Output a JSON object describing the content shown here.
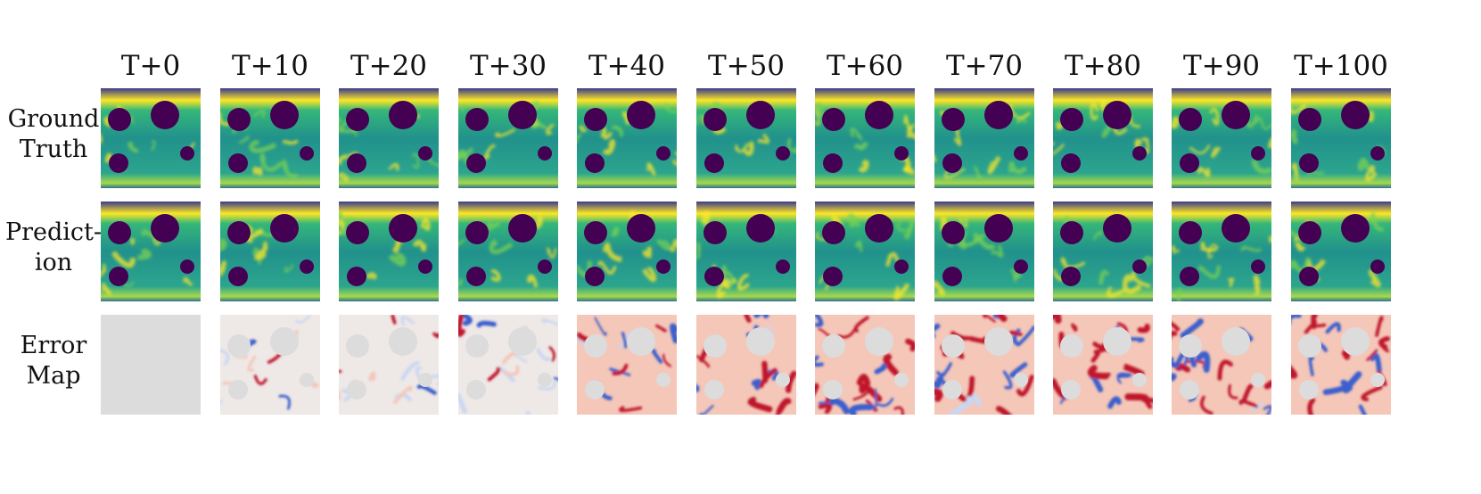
{
  "columns": [
    "T+0",
    "T+10",
    "T+20",
    "T+30",
    "T+40",
    "T+50",
    "T+60",
    "T+70",
    "T+80",
    "T+90",
    "T+100"
  ],
  "rows": [
    {
      "line1": "Ground",
      "line2": "Truth",
      "kind": "field"
    },
    {
      "line1": "Predict-",
      "line2": "ion",
      "kind": "field"
    },
    {
      "line1": "Error",
      "line2": "Map",
      "kind": "error"
    }
  ],
  "colors": {
    "field_background": "#2a9d8f",
    "field_high": "#fde725",
    "field_mid": "#7ad151",
    "field_obstacle": "#440154",
    "error_neutral": "#dcdcdc",
    "error_positive": "#c0142a",
    "error_negative": "#3a5fcd",
    "error_light_pos": "#f4c7b8",
    "error_light_neg": "#c9d7f2"
  }
}
